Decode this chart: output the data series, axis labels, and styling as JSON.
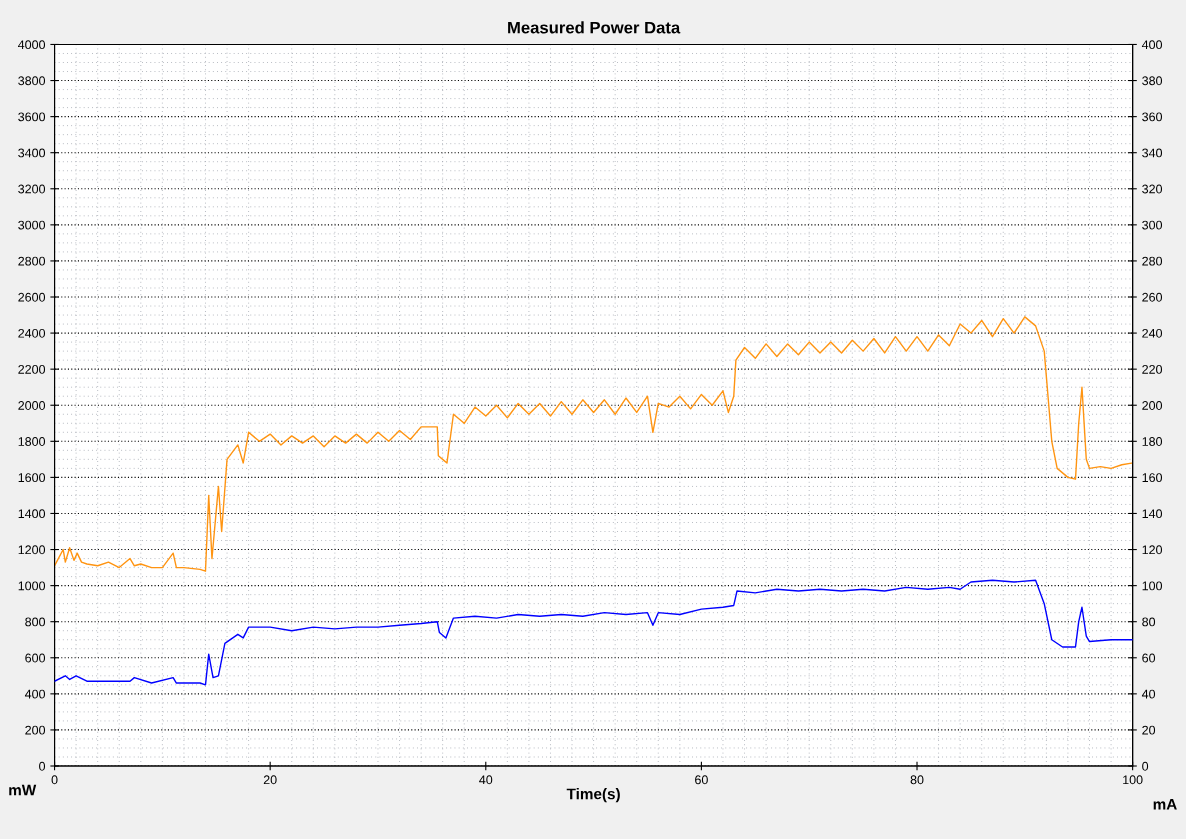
{
  "chart_data": {
    "type": "line",
    "title": "Measured Power Data",
    "xlabel": "Time(s)",
    "ylabel": "mW",
    "y2label": "mA",
    "xlim": [
      0,
      100
    ],
    "xticks": [
      0,
      20,
      40,
      60,
      80,
      100
    ],
    "ylim": [
      0,
      4000
    ],
    "yticks": [
      0,
      200,
      400,
      600,
      800,
      1000,
      1200,
      1400,
      1600,
      1800,
      2000,
      2200,
      2400,
      2600,
      2800,
      3000,
      3200,
      3400,
      3600,
      3800,
      4000
    ],
    "y2lim": [
      0,
      400
    ],
    "y2ticks": [
      0,
      20,
      40,
      60,
      80,
      100,
      120,
      140,
      160,
      180,
      200,
      220,
      240,
      260,
      280,
      300,
      320,
      340,
      360,
      380,
      400
    ],
    "grid": true,
    "marker": "none",
    "line_style": "solid",
    "series": [
      {
        "color": "#ff9411",
        "x": [
          0,
          0.8,
          1.0,
          1.4,
          1.8,
          2.1,
          2.5,
          3.0,
          4.0,
          5.0,
          6.0,
          7.0,
          7.4,
          8.0,
          9.0,
          10.0,
          11.0,
          11.3,
          12.0,
          13.5,
          14.0,
          14.3,
          14.6,
          15.2,
          15.5,
          16.0,
          17.0,
          17.5,
          18.0,
          19.0,
          20.0,
          21.0,
          22.0,
          23.0,
          24.0,
          25.0,
          26.0,
          27.0,
          28.0,
          29.0,
          30.0,
          31.0,
          32.0,
          33.0,
          34.0,
          35.5,
          35.6,
          36.0,
          36.4,
          37.0,
          38.0,
          39.0,
          40.0,
          41.0,
          42.0,
          43.0,
          44.0,
          45.0,
          46.0,
          47.0,
          48.0,
          49.0,
          50.0,
          51.0,
          52.0,
          53.0,
          54.0,
          55.0,
          55.5,
          56.0,
          57.0,
          58.0,
          59.0,
          60.0,
          61.0,
          62.0,
          62.5,
          63.0,
          63.2,
          64.0,
          65.0,
          66.0,
          67.0,
          68.0,
          69.0,
          70.0,
          71.0,
          72.0,
          73.0,
          74.0,
          75.0,
          76.0,
          77.0,
          78.0,
          79.0,
          80.0,
          81.0,
          82.0,
          83.0,
          84.0,
          85.0,
          86.0,
          87.0,
          88.0,
          89.0,
          90.0,
          91.0,
          91.8,
          92.5,
          93.0,
          94.0,
          94.7,
          95.0,
          95.3,
          95.7,
          96.0,
          97.0,
          98.0,
          99.0,
          100.0
        ],
        "values": [
          1110,
          1200,
          1130,
          1210,
          1140,
          1180,
          1130,
          1120,
          1110,
          1130,
          1100,
          1150,
          1110,
          1120,
          1100,
          1100,
          1180,
          1100,
          1100,
          1090,
          1080,
          1500,
          1150,
          1550,
          1300,
          1700,
          1780,
          1680,
          1850,
          1800,
          1840,
          1780,
          1830,
          1790,
          1830,
          1770,
          1830,
          1790,
          1840,
          1790,
          1850,
          1800,
          1860,
          1810,
          1880,
          1880,
          1720,
          1700,
          1680,
          1950,
          1900,
          1990,
          1940,
          2000,
          1930,
          2010,
          1950,
          2010,
          1940,
          2020,
          1950,
          2030,
          1960,
          2030,
          1950,
          2040,
          1960,
          2050,
          1850,
          2010,
          1990,
          2050,
          1980,
          2060,
          2000,
          2080,
          1960,
          2050,
          2250,
          2320,
          2260,
          2340,
          2270,
          2340,
          2280,
          2350,
          2290,
          2350,
          2290,
          2360,
          2300,
          2370,
          2290,
          2380,
          2300,
          2380,
          2300,
          2390,
          2330,
          2450,
          2400,
          2470,
          2380,
          2480,
          2400,
          2490,
          2440,
          2300,
          1800,
          1650,
          1600,
          1590,
          1900,
          2100,
          1700,
          1650,
          1660,
          1650,
          1670,
          1680
        ]
      },
      {
        "color": "#0000ff",
        "axis": "y2",
        "x": [
          0,
          1.0,
          1.4,
          2.0,
          3.0,
          5.0,
          7.0,
          7.4,
          9.0,
          11.0,
          11.3,
          13.5,
          14.0,
          14.3,
          14.7,
          15.2,
          15.8,
          17.0,
          17.5,
          18.0,
          20.0,
          22.0,
          24.0,
          26.0,
          28.0,
          30.0,
          32.0,
          34.0,
          35.5,
          35.7,
          36.3,
          37.0,
          39.0,
          41.0,
          43.0,
          45.0,
          47.0,
          49.0,
          51.0,
          53.0,
          55.0,
          55.5,
          56.0,
          58.0,
          60.0,
          62.0,
          63.0,
          63.3,
          65.0,
          67.0,
          69.0,
          71.0,
          73.0,
          75.0,
          77.0,
          79.0,
          81.0,
          83.0,
          84.0,
          85.0,
          87.0,
          89.0,
          91.0,
          91.8,
          92.5,
          93.5,
          94.7,
          95.0,
          95.3,
          95.7,
          96.0,
          98.0,
          100.0
        ],
        "values": [
          47,
          50,
          48,
          50,
          47,
          47,
          47,
          49,
          46,
          49,
          46,
          46,
          45,
          62,
          49,
          50,
          68,
          73,
          71,
          77,
          77,
          75,
          77,
          76,
          77,
          77,
          78,
          79,
          80,
          74,
          71,
          82,
          83,
          82,
          84,
          83,
          84,
          83,
          85,
          84,
          85,
          78,
          85,
          84,
          87,
          88,
          89,
          97,
          96,
          98,
          97,
          98,
          97,
          98,
          97,
          99,
          98,
          99,
          98,
          102,
          103,
          102,
          103,
          90,
          70,
          66,
          66,
          80,
          88,
          72,
          69,
          70,
          70
        ]
      }
    ]
  }
}
